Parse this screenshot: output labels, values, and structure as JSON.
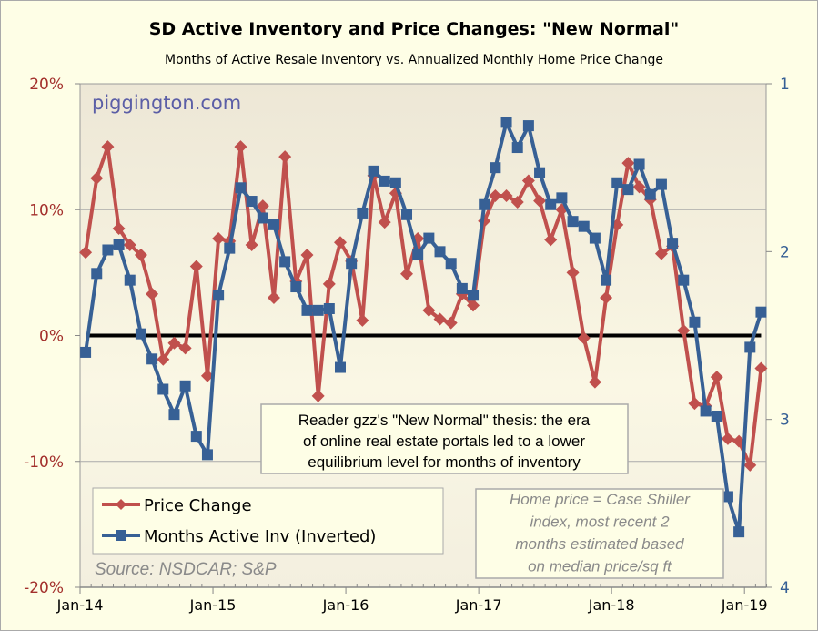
{
  "chart_data": {
    "type": "line",
    "title": "SD Active Inventory and Price Changes: \"New Normal\"",
    "subtitle": "Months of Active Resale Inventory vs. Annualized Monthly Home Price Change",
    "watermark": "piggington.com",
    "x_tick_labels": [
      "Jan-14",
      "Jan-15",
      "Jan-16",
      "Jan-17",
      "Jan-18",
      "Jan-19"
    ],
    "x_range": [
      "Jan-14",
      "Feb-19"
    ],
    "left_axis": {
      "ticks": [
        "20%",
        "10%",
        "0%",
        "-10%",
        "-20%"
      ],
      "tick_values": [
        20,
        10,
        0,
        -10,
        -20
      ],
      "range": [
        -20,
        20
      ],
      "unit": "%"
    },
    "right_axis": {
      "ticks": [
        "1",
        "2",
        "3",
        "4"
      ],
      "tick_values": [
        1,
        2,
        3,
        4
      ],
      "range": [
        1,
        4
      ],
      "inverted": true
    },
    "grid": "horizontal at 10% and -10%",
    "zero_line": true,
    "series": [
      {
        "name": "Price Change",
        "axis": "left",
        "color": "#c0504d",
        "marker": "diamond",
        "values": [
          6.6,
          12.5,
          15.0,
          8.5,
          7.2,
          6.4,
          3.3,
          -1.9,
          -0.6,
          -1.0,
          5.5,
          -3.2,
          7.7,
          7.5,
          15.0,
          7.2,
          10.3,
          3.0,
          14.2,
          4.3,
          6.4,
          -4.8,
          4.1,
          7.4,
          5.9,
          1.2,
          12.7,
          9.0,
          11.3,
          4.9,
          7.7,
          2.0,
          1.3,
          1.0,
          3.3,
          2.4,
          9.1,
          11.1,
          11.1,
          10.6,
          12.3,
          10.7,
          7.6,
          10.0,
          5.0,
          -0.2,
          -3.7,
          3.0,
          8.8,
          13.7,
          11.8,
          10.8,
          6.5,
          7.1,
          0.4,
          -5.4,
          -5.6,
          -3.3,
          -8.2,
          -8.4,
          -10.3,
          -2.6
        ]
      },
      {
        "name": "Months Active Inv (Inverted)",
        "axis": "right",
        "color": "#376095",
        "marker": "square",
        "values": [
          2.6,
          2.13,
          1.99,
          1.96,
          2.17,
          2.49,
          2.64,
          2.82,
          2.97,
          2.8,
          3.1,
          3.21,
          2.26,
          1.98,
          1.62,
          1.7,
          1.8,
          1.84,
          2.06,
          2.21,
          2.35,
          2.35,
          2.34,
          2.69,
          2.07,
          1.77,
          1.52,
          1.58,
          1.59,
          1.78,
          2.02,
          1.92,
          2.0,
          2.07,
          2.22,
          2.26,
          1.72,
          1.5,
          1.23,
          1.38,
          1.25,
          1.53,
          1.72,
          1.68,
          1.82,
          1.85,
          1.92,
          2.17,
          1.59,
          1.63,
          1.48,
          1.66,
          1.6,
          1.95,
          2.17,
          2.42,
          2.95,
          2.98,
          3.46,
          3.67,
          2.57,
          2.36
        ]
      }
    ],
    "legend": {
      "placement": "bottom-left",
      "entries": [
        "Price Change",
        "Months Active Inv (Inverted)"
      ]
    },
    "annotations": {
      "thesis": [
        "Reader gzz's \"New Normal\" thesis: the era",
        "of online real estate portals led to a lower",
        "equilibrium level for months of inventory"
      ],
      "source": "Source: NSDCAR; S&P",
      "method": [
        "Home price = Case Shiller",
        "index, most recent 2",
        "months estimated based",
        "on median price/sq ft"
      ]
    }
  }
}
